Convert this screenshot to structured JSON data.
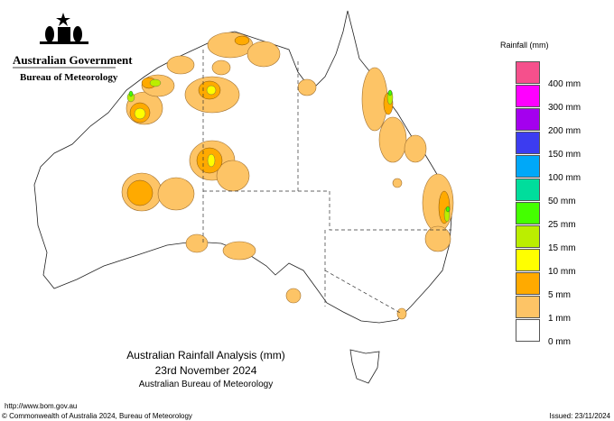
{
  "header": {
    "org": "Australian Government",
    "bureau": "Bureau of Meteorology"
  },
  "title": {
    "line1": "Australian Rainfall Analysis (mm)",
    "line2": "23rd November 2024",
    "line3": "Australian Bureau of Meteorology"
  },
  "footer": {
    "url": "http://www.bom.gov.au",
    "copyright": "© Commonwealth of Australia 2024, Bureau of Meteorology",
    "issued": "Issued: 23/11/2024"
  },
  "legend": {
    "title": "Rainfall (mm)",
    "colors": [
      "#f5508c",
      "#ff00ff",
      "#a400ee",
      "#3c3cf0",
      "#00a8f8",
      "#00dd9c",
      "#44ff00",
      "#bbee00",
      "#ffff00",
      "#ffaa00",
      "#fdc466",
      "#ffffff"
    ],
    "labels": [
      "400 mm",
      "300 mm",
      "200 mm",
      "150 mm",
      "100 mm",
      "50 mm",
      "25 mm",
      "15 mm",
      "10 mm",
      "5 mm",
      "1 mm",
      "0 mm"
    ]
  }
}
